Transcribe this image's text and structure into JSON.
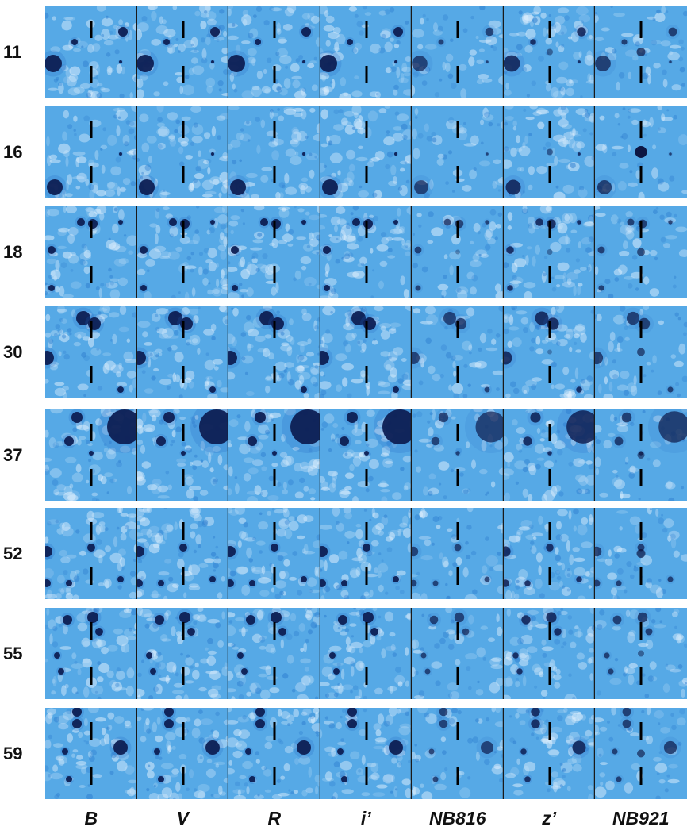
{
  "figure": {
    "bands": [
      "B",
      "V",
      "R",
      "i’",
      "NB816",
      "z’",
      "NB921"
    ],
    "objects": [
      {
        "id": "11"
      },
      {
        "id": "16"
      },
      {
        "id": "18"
      },
      {
        "id": "30"
      },
      {
        "id": "37"
      },
      {
        "id": "52"
      },
      {
        "id": "55"
      },
      {
        "id": "59"
      }
    ],
    "colors": {
      "background_sky": "#56a9e6",
      "source_dark": "#0a0f3a",
      "noise_light": "#e8f4ff",
      "marker": "#000000",
      "separator": "#1a1a1a"
    }
  }
}
